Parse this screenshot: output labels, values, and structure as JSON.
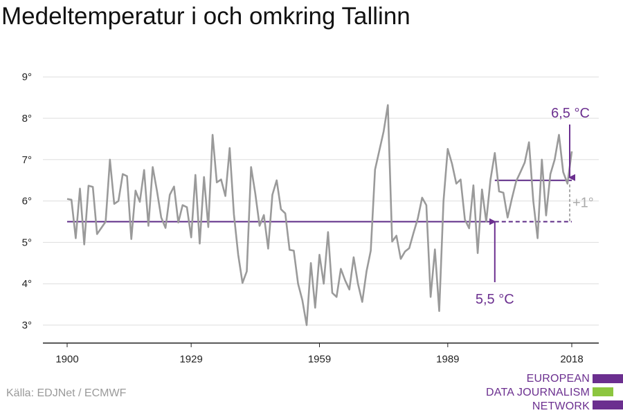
{
  "title": "Medeltemperatur i och omkring Tallinn",
  "source": "Källa: EDJNet / ECMWF",
  "logo": {
    "lines": [
      "EUROPEAN",
      "DATA JOURNALISM",
      "NETWORK"
    ],
    "colors": {
      "purple": "#6b2f8f",
      "green": "#8cc63f"
    }
  },
  "colors": {
    "line": "#9a9a9a",
    "baseline": "#5c2a86",
    "annotation": "#6b2f8f",
    "delta": "#aaaaaa",
    "grid": "#dddddd"
  },
  "chart_data": {
    "type": "line",
    "title": "Medeltemperatur i och omkring Tallinn",
    "xlabel": "",
    "ylabel": "",
    "xlim": [
      1900,
      2018
    ],
    "ylim": [
      3,
      9
    ],
    "x_ticks": [
      1900,
      1929,
      1959,
      1989,
      2018
    ],
    "x_tick_labels": [
      "1900",
      "1929",
      "1959",
      "1989",
      "2018"
    ],
    "y_ticks": [
      3,
      4,
      5,
      6,
      7,
      8,
      9
    ],
    "y_tick_labels": [
      "3°",
      "4°",
      "5°",
      "6°",
      "7°",
      "8°",
      "9°"
    ],
    "grid": true,
    "series": [
      {
        "x": [
          1900,
          1901,
          1902,
          1903,
          1904,
          1905,
          1906,
          1907,
          1908,
          1909,
          1910,
          1911,
          1912,
          1913,
          1914,
          1915,
          1916,
          1917,
          1918,
          1919,
          1920,
          1921,
          1922,
          1923,
          1924,
          1925,
          1926,
          1927,
          1928,
          1929,
          1930,
          1931,
          1932,
          1933,
          1934,
          1935,
          1936,
          1937,
          1938,
          1939,
          1940,
          1941,
          1942,
          1943,
          1944,
          1945,
          1946,
          1947,
          1948,
          1949,
          1950,
          1951,
          1952,
          1953,
          1954,
          1955,
          1956,
          1957,
          1958,
          1959,
          1960,
          1961,
          1962,
          1963,
          1964,
          1965,
          1966,
          1967,
          1968,
          1969,
          1970,
          1971,
          1972,
          1973,
          1974,
          1975,
          1976,
          1977,
          1978,
          1979,
          1980,
          1981,
          1982,
          1983,
          1984,
          1985,
          1986,
          1987,
          1988,
          1989,
          1990,
          1991,
          1992,
          1993,
          1994,
          1995,
          1996,
          1997,
          1998,
          1999,
          2000,
          2001,
          2002,
          2003,
          2004,
          2005,
          2006,
          2007,
          2008,
          2009,
          2010,
          2011,
          2012,
          2013,
          2014,
          2015,
          2016,
          2017,
          2018
        ],
        "values": [
          6.05,
          6.03,
          5.1,
          6.3,
          4.95,
          6.37,
          6.34,
          5.2,
          5.35,
          5.5,
          7.0,
          5.93,
          6.0,
          6.65,
          6.6,
          5.08,
          6.25,
          5.98,
          6.75,
          5.4,
          6.82,
          6.25,
          5.6,
          5.35,
          6.15,
          6.35,
          5.48,
          5.9,
          5.85,
          5.12,
          6.63,
          4.97,
          6.58,
          5.37,
          7.6,
          6.45,
          6.52,
          6.12,
          7.28,
          5.68,
          4.7,
          4.02,
          4.3,
          6.82,
          6.18,
          5.4,
          5.66,
          4.85,
          6.15,
          6.5,
          5.8,
          5.7,
          4.82,
          4.8,
          4.0,
          3.6,
          3.0,
          4.5,
          3.42,
          4.7,
          4.0,
          5.25,
          3.78,
          3.68,
          4.36,
          4.08,
          3.86,
          4.64,
          4.0,
          3.56,
          4.3,
          4.8,
          6.76,
          7.22,
          7.68,
          8.32,
          5.02,
          5.16,
          4.6,
          4.78,
          4.86,
          5.23,
          5.58,
          6.08,
          5.9,
          3.68,
          4.83,
          3.34,
          6.0,
          7.26,
          6.9,
          6.42,
          6.52,
          5.55,
          5.34,
          6.38,
          4.74,
          6.28,
          5.5,
          6.52,
          7.16,
          6.23,
          6.2,
          5.6,
          6.06,
          6.48,
          6.7,
          6.93,
          7.42,
          6.0,
          5.1,
          7.0,
          5.65,
          6.65,
          7.0,
          7.6,
          6.7,
          6.42,
          7.2
        ]
      }
    ],
    "reference_lines": [
      {
        "label": "5,5 °C",
        "value": 5.5,
        "x_start": 1900,
        "x_end": 2018,
        "solid_until": 2000
      },
      {
        "label": "6,5 °C",
        "value": 6.5,
        "x_start": 2000,
        "x_end": 2018
      }
    ],
    "annotations": [
      {
        "text": "6,5 °C",
        "target_x": 2018,
        "target_value": 6.5
      },
      {
        "text": "5,5 °C",
        "target_x": 2000,
        "target_value": 5.5
      },
      {
        "text": "+1°",
        "from_value": 5.5,
        "to_value": 6.5
      }
    ]
  }
}
